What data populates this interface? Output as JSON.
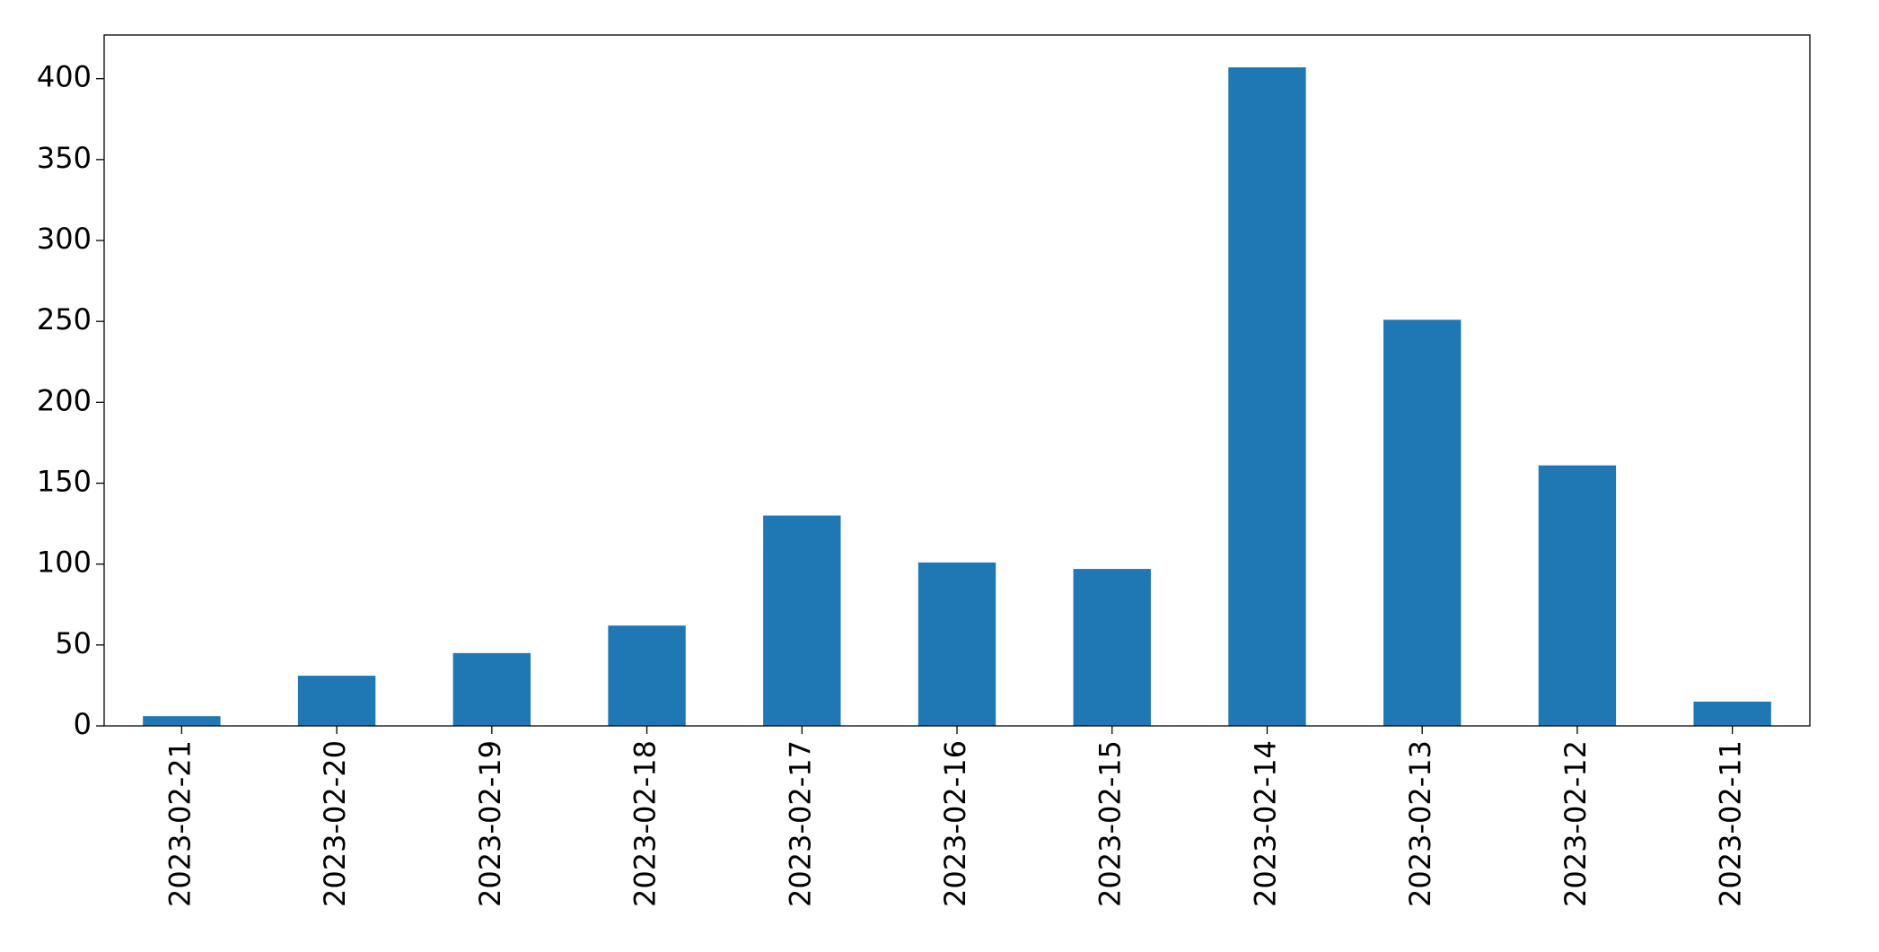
{
  "chart_data": {
    "type": "bar",
    "categories": [
      "2023-02-21",
      "2023-02-20",
      "2023-02-19",
      "2023-02-18",
      "2023-02-17",
      "2023-02-16",
      "2023-02-15",
      "2023-02-14",
      "2023-02-13",
      "2023-02-12",
      "2023-02-11"
    ],
    "values": [
      6,
      31,
      45,
      62,
      130,
      101,
      97,
      407,
      251,
      161,
      15
    ],
    "color": "#1f77b4",
    "ylim": [
      0,
      427
    ],
    "yticks": [
      0,
      50,
      100,
      150,
      200,
      250,
      300,
      350,
      400
    ],
    "grid": false
  }
}
